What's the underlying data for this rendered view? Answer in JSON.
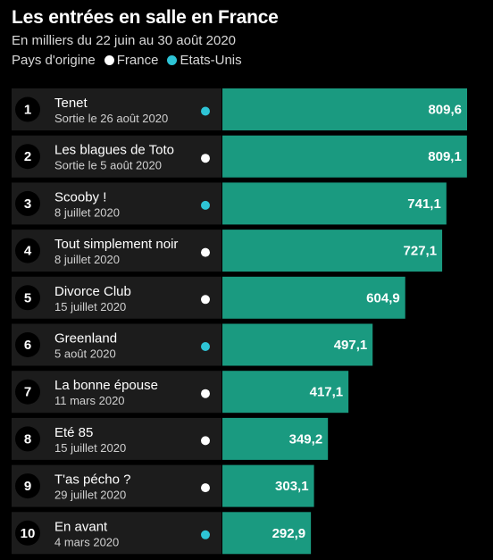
{
  "header": {
    "title": "Les entrées en salle en France",
    "subtitle": "En milliers du 22 juin au 30 août 2020",
    "legend_prefix": "Pays d'origine",
    "legend": [
      {
        "label": "France",
        "color": "#ffffff"
      },
      {
        "label": "Etats-Unis",
        "color": "#2ec4d6"
      }
    ]
  },
  "colors": {
    "background": "#000000",
    "row_panel": "#1c1c1c",
    "bar": "#1a9a80",
    "rank_circle": "#000000",
    "france": "#ffffff",
    "usa": "#2ec4d6"
  },
  "chart_data": {
    "type": "bar",
    "orientation": "horizontal",
    "title": "Les entrées en salle en France",
    "subtitle": "En milliers du 22 juin au 30 août 2020",
    "xlim": [
      0,
      809.6
    ],
    "categories": [
      "Tenet",
      "Les blagues de Toto",
      "Scooby !",
      "Tout simplement noir",
      "Divorce Club",
      "Greenland",
      "La bonne épouse",
      "Eté 85",
      "T'as pécho ?",
      "En avant"
    ],
    "rows": [
      {
        "rank": "1",
        "title": "Tenet",
        "release": "Sortie le 26 août 2020",
        "origin": "Etats-Unis",
        "value": 809.6,
        "value_label": "809,6"
      },
      {
        "rank": "2",
        "title": "Les blagues de Toto",
        "release": "Sortie le 5 août 2020",
        "origin": "France",
        "value": 809.1,
        "value_label": "809,1"
      },
      {
        "rank": "3",
        "title": "Scooby !",
        "release": "8 juillet 2020",
        "origin": "Etats-Unis",
        "value": 741.1,
        "value_label": "741,1"
      },
      {
        "rank": "4",
        "title": "Tout simplement noir",
        "release": "8 juillet 2020",
        "origin": "France",
        "value": 727.1,
        "value_label": "727,1"
      },
      {
        "rank": "5",
        "title": "Divorce Club",
        "release": "15 juillet 2020",
        "origin": "France",
        "value": 604.9,
        "value_label": "604,9"
      },
      {
        "rank": "6",
        "title": "Greenland",
        "release": "5 août 2020",
        "origin": "Etats-Unis",
        "value": 497.1,
        "value_label": "497,1"
      },
      {
        "rank": "7",
        "title": "La bonne épouse",
        "release": "11 mars 2020",
        "origin": "France",
        "value": 417.1,
        "value_label": "417,1"
      },
      {
        "rank": "8",
        "title": "Eté 85",
        "release": "15 juillet 2020",
        "origin": "France",
        "value": 349.2,
        "value_label": "349,2"
      },
      {
        "rank": "9",
        "title": "T'as pécho ?",
        "release": "29 juillet 2020",
        "origin": "France",
        "value": 303.1,
        "value_label": "303,1"
      },
      {
        "rank": "10",
        "title": "En avant",
        "release": "4 mars 2020",
        "origin": "Etats-Unis",
        "value": 292.9,
        "value_label": "292,9"
      }
    ]
  }
}
